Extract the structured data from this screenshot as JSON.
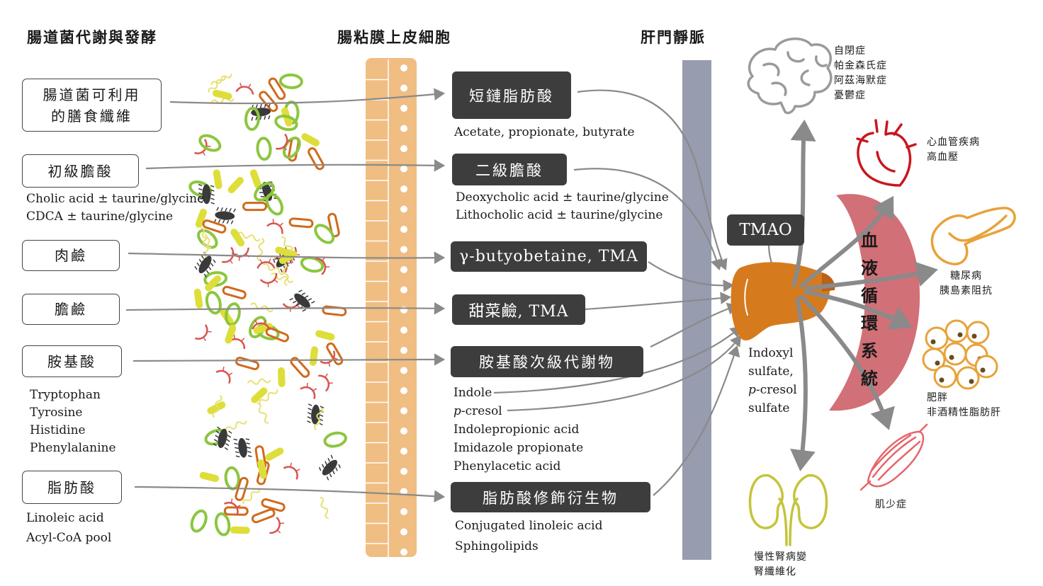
{
  "headers": {
    "microbiota": "腸道菌代謝與發酵",
    "epithelium": "腸粘膜上皮細胞",
    "portal_vein": "肝門靜脈"
  },
  "sources": [
    {
      "label_lines": [
        "腸道菌可利用",
        "的膳食纖維"
      ],
      "sub": []
    },
    {
      "label_lines": [
        "初級膽酸"
      ],
      "sub": [
        "Cholic acid ± taurine/glycine",
        "CDCA ± taurine/glycine"
      ]
    },
    {
      "label_lines": [
        "肉鹼"
      ],
      "sub": []
    },
    {
      "label_lines": [
        "膽鹼"
      ],
      "sub": []
    },
    {
      "label_lines": [
        "胺基酸"
      ],
      "sub": [
        "Tryptophan",
        "Tyrosine",
        "Histidine",
        "Phenylalanine"
      ]
    },
    {
      "label_lines": [
        "脂肪酸"
      ],
      "sub": [
        "Linoleic acid",
        "Acyl-CoA pool"
      ]
    }
  ],
  "metabolites": [
    {
      "label": "短鏈脂肪酸",
      "sub": [
        "Acetate, propionate, butyrate"
      ]
    },
    {
      "label": "二級膽酸",
      "sub": [
        "Deoxycholic acid ± taurine/glycine",
        "Lithocholic acid ± taurine/glycine"
      ]
    },
    {
      "label": "γ-butyobetaine, TMA",
      "sub": []
    },
    {
      "label": "甜菜鹼, TMA",
      "sub": []
    },
    {
      "label": "胺基酸次級代謝物",
      "sub": []
    },
    {
      "label": "脂肪酸修飾衍生物",
      "sub": [
        "Conjugated linoleic acid",
        "Sphingolipids"
      ]
    }
  ],
  "amino_acid_products": {
    "indole": "Indole",
    "p_prefix": "p",
    "cresol_rest": "-cresol",
    "others": [
      "Indolepropionic acid",
      "Imidazole propionate",
      "Phenylacetic acid"
    ]
  },
  "tmao": "TMAO",
  "liver_products": {
    "line1": "Indoxyl",
    "line2": "sulfate,",
    "p_prefix": "p",
    "line3_rest": "-cresol",
    "line4": "sulfate"
  },
  "blood_circulation": [
    "血",
    "液",
    "循",
    "環",
    "系",
    "統"
  ],
  "diseases": {
    "brain": [
      "自閉症",
      "帕金森氏症",
      "阿茲海默症",
      "憂鬱症"
    ],
    "heart": [
      "心血管疾病",
      "高血壓"
    ],
    "pancreas": [
      "糖尿病",
      "胰島素阻抗"
    ],
    "fat": [
      "肥胖",
      "非酒精性脂肪肝"
    ],
    "muscle": [
      "肌少症"
    ],
    "kidney": [
      "慢性腎病變",
      "腎纖維化"
    ]
  },
  "icons": [
    "brain-icon",
    "heart-icon",
    "pancreas-icon",
    "fat-cells-icon",
    "muscle-icon",
    "kidney-icon",
    "liver-icon"
  ],
  "colors": {
    "epithelium": "#f0bd82",
    "portal_vein": "#979caf",
    "liver": "#d67a1e",
    "blood": "#c9575f",
    "dark_box": "#3d3d3d",
    "arrow": "#8a8a8a"
  }
}
